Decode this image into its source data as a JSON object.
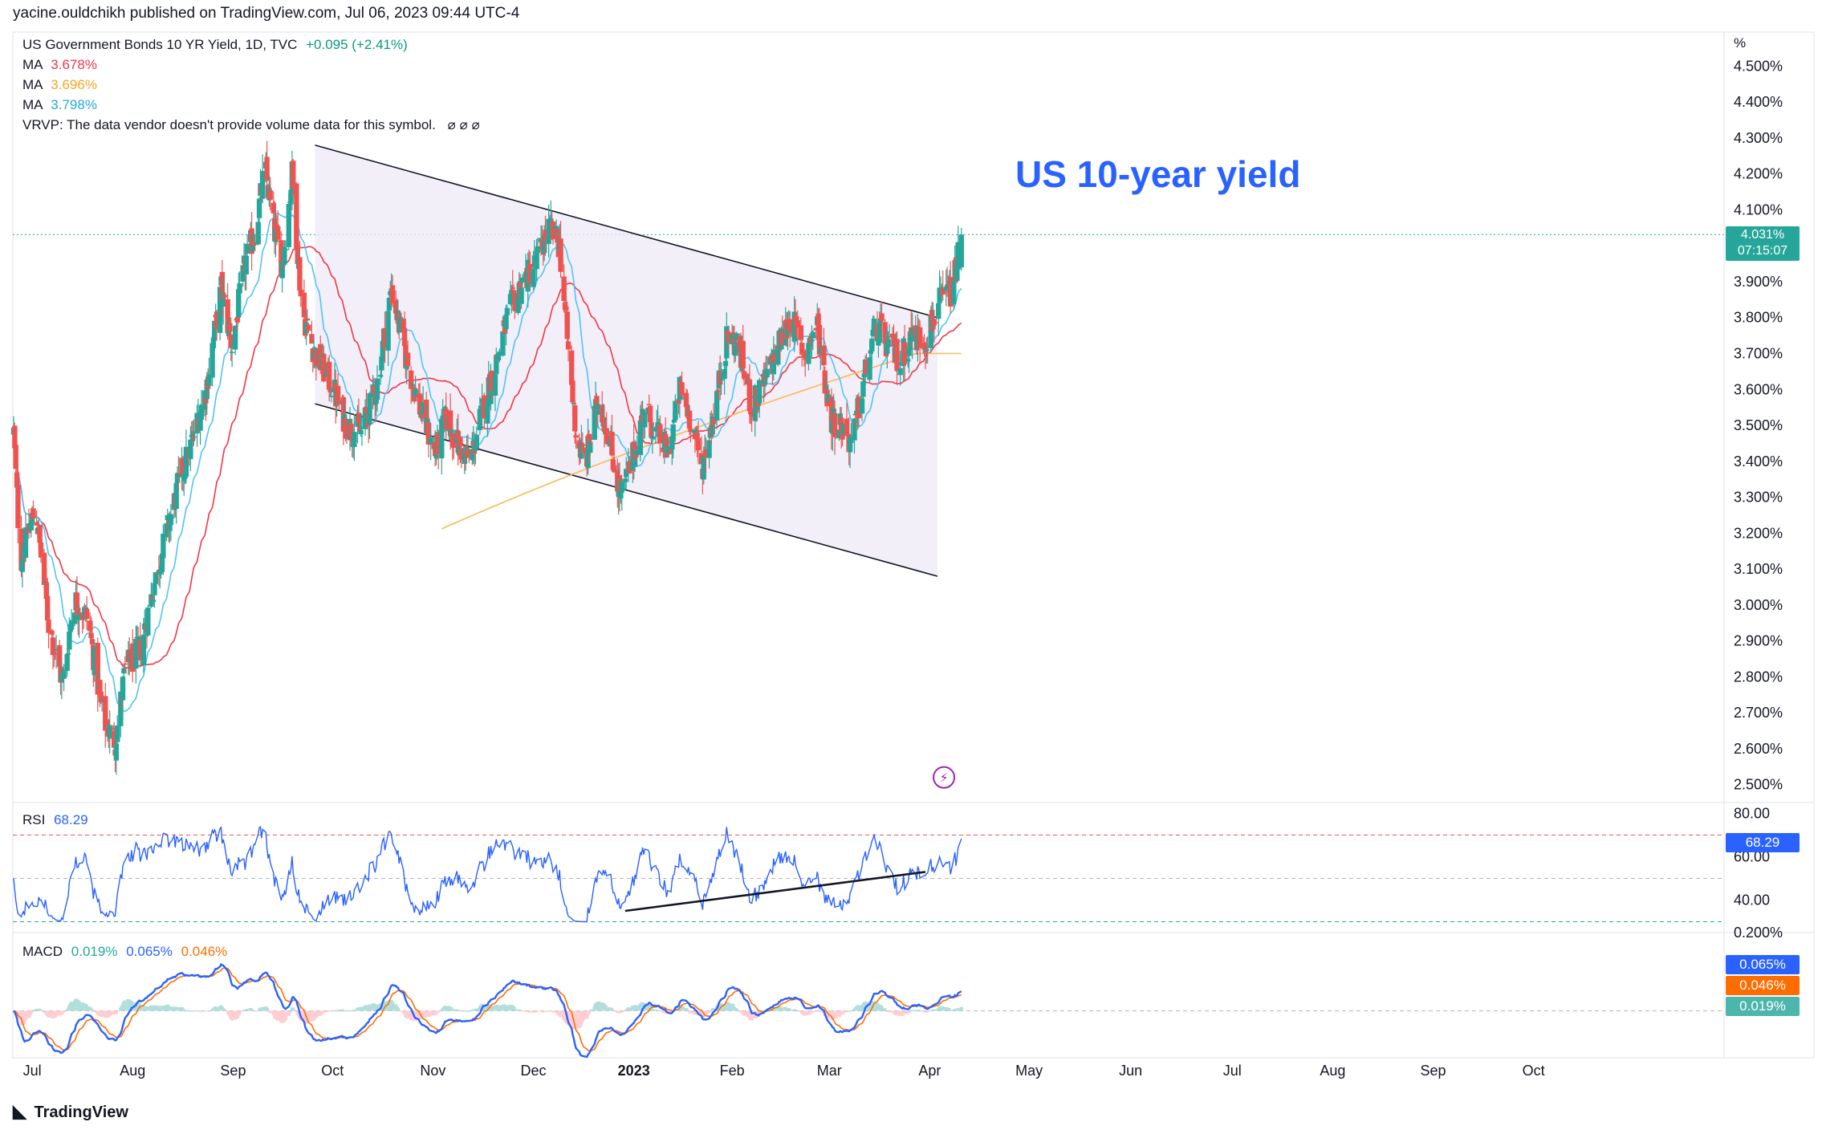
{
  "header": {
    "publisher_line": "yacine.ouldchikh published on TradingView.com, Jul 06, 2023 09:44 UTC-4"
  },
  "legend": {
    "symbol": "US Government Bonds 10 YR Yield, 1D, TVC",
    "change": "+0.095 (+2.41%)",
    "ma1_label": "MA",
    "ma1_value": "3.678%",
    "ma1_color": "#f23645",
    "ma2_label": "MA",
    "ma2_value": "3.696%",
    "ma2_color": "#ffb74d",
    "ma3_label": "MA",
    "ma3_value": "3.798%",
    "ma3_color": "#4fc3f7",
    "vrvp": "VRVP: The data vendor doesn't provide volume data for this symbol.",
    "vrvp_icons": "⌀ ⌀ ⌀"
  },
  "annotation_title": "US 10-year yield",
  "price_axis": {
    "unit_label": "%",
    "current_price": "4.031%",
    "countdown": "07:15:07"
  },
  "rsi": {
    "label": "RSI",
    "value": "68.29",
    "badge": "68.29",
    "color": "#2962ff"
  },
  "macd": {
    "label": "MACD",
    "hist": "0.019%",
    "macd": "0.065%",
    "signal": "0.046%",
    "badge_macd": "0.065%",
    "badge_signal": "0.046%",
    "badge_hist": "0.019%"
  },
  "footer": {
    "brand": "TradingView",
    "brand_icon": "tradingview-logo-icon"
  },
  "colors": {
    "up": "#26a69a",
    "down": "#ef5350",
    "channel_fill": "#ede9f7",
    "macd_line": "#2962ff",
    "signal_line": "#ff6d00"
  },
  "chart_data": [
    {
      "type": "candlestick",
      "title": "US Government Bonds 10 YR Yield, 1D, TVC",
      "ylabel": "%",
      "ylim": [
        2.45,
        4.55
      ],
      "y_ticks": [
        "2.500%",
        "2.600%",
        "2.700%",
        "2.800%",
        "2.900%",
        "3.000%",
        "3.100%",
        "3.200%",
        "3.300%",
        "3.400%",
        "3.500%",
        "3.600%",
        "3.700%",
        "3.800%",
        "3.900%",
        "4.000%",
        "4.100%",
        "4.200%",
        "4.300%",
        "4.400%",
        "4.500%"
      ],
      "x_labels": [
        "Jul",
        "Aug",
        "Sep",
        "Oct",
        "Nov",
        "Dec",
        "2023",
        "Feb",
        "Mar",
        "Apr",
        "May",
        "Jun",
        "Jul",
        "Aug",
        "Sep",
        "Oct"
      ],
      "x_label_days": [
        17,
        109,
        201,
        292,
        384,
        476,
        568,
        658,
        747,
        839,
        930,
        1023,
        1116,
        1208,
        1300,
        1392
      ],
      "close_anchors": [
        {
          "d": 0,
          "v": 3.48
        },
        {
          "d": 6,
          "v": 3.12
        },
        {
          "d": 20,
          "v": 3.27
        },
        {
          "d": 32,
          "v": 2.95
        },
        {
          "d": 45,
          "v": 2.78
        },
        {
          "d": 55,
          "v": 3.02
        },
        {
          "d": 68,
          "v": 2.96
        },
        {
          "d": 82,
          "v": 2.68
        },
        {
          "d": 93,
          "v": 2.62
        },
        {
          "d": 102,
          "v": 2.82
        },
        {
          "d": 116,
          "v": 2.88
        },
        {
          "d": 128,
          "v": 3.05
        },
        {
          "d": 140,
          "v": 3.2
        },
        {
          "d": 152,
          "v": 3.35
        },
        {
          "d": 163,
          "v": 3.45
        },
        {
          "d": 176,
          "v": 3.6
        },
        {
          "d": 190,
          "v": 3.88
        },
        {
          "d": 200,
          "v": 3.72
        },
        {
          "d": 212,
          "v": 3.95
        },
        {
          "d": 222,
          "v": 4.05
        },
        {
          "d": 230,
          "v": 4.22
        },
        {
          "d": 238,
          "v": 4.05
        },
        {
          "d": 246,
          "v": 3.95
        },
        {
          "d": 255,
          "v": 4.2
        },
        {
          "d": 264,
          "v": 3.82
        },
        {
          "d": 276,
          "v": 3.7
        },
        {
          "d": 290,
          "v": 3.62
        },
        {
          "d": 305,
          "v": 3.5
        },
        {
          "d": 318,
          "v": 3.48
        },
        {
          "d": 332,
          "v": 3.6
        },
        {
          "d": 346,
          "v": 3.88
        },
        {
          "d": 360,
          "v": 3.68
        },
        {
          "d": 372,
          "v": 3.55
        },
        {
          "d": 386,
          "v": 3.42
        },
        {
          "d": 396,
          "v": 3.52
        },
        {
          "d": 406,
          "v": 3.45
        },
        {
          "d": 418,
          "v": 3.4
        },
        {
          "d": 430,
          "v": 3.55
        },
        {
          "d": 442,
          "v": 3.68
        },
        {
          "d": 454,
          "v": 3.82
        },
        {
          "d": 466,
          "v": 3.9
        },
        {
          "d": 478,
          "v": 3.95
        },
        {
          "d": 490,
          "v": 4.05
        },
        {
          "d": 500,
          "v": 4.0
        },
        {
          "d": 508,
          "v": 3.7
        },
        {
          "d": 516,
          "v": 3.45
        },
        {
          "d": 524,
          "v": 3.4
        },
        {
          "d": 536,
          "v": 3.58
        },
        {
          "d": 546,
          "v": 3.45
        },
        {
          "d": 556,
          "v": 3.3
        },
        {
          "d": 566,
          "v": 3.4
        },
        {
          "d": 578,
          "v": 3.55
        },
        {
          "d": 588,
          "v": 3.48
        },
        {
          "d": 600,
          "v": 3.42
        },
        {
          "d": 610,
          "v": 3.6
        },
        {
          "d": 620,
          "v": 3.52
        },
        {
          "d": 630,
          "v": 3.38
        },
        {
          "d": 642,
          "v": 3.55
        },
        {
          "d": 654,
          "v": 3.75
        },
        {
          "d": 664,
          "v": 3.72
        },
        {
          "d": 676,
          "v": 3.55
        },
        {
          "d": 688,
          "v": 3.62
        },
        {
          "d": 700,
          "v": 3.72
        },
        {
          "d": 712,
          "v": 3.8
        },
        {
          "d": 724,
          "v": 3.7
        },
        {
          "d": 736,
          "v": 3.78
        },
        {
          "d": 748,
          "v": 3.52
        },
        {
          "d": 758,
          "v": 3.5
        },
        {
          "d": 768,
          "v": 3.45
        },
        {
          "d": 778,
          "v": 3.62
        },
        {
          "d": 790,
          "v": 3.78
        },
        {
          "d": 800,
          "v": 3.72
        },
        {
          "d": 812,
          "v": 3.68
        },
        {
          "d": 822,
          "v": 3.75
        },
        {
          "d": 835,
          "v": 3.74
        },
        {
          "d": 848,
          "v": 3.84
        },
        {
          "d": 860,
          "v": 3.88
        },
        {
          "d": 868,
          "v": 4.03
        }
      ],
      "channel": {
        "upper": {
          "d_start": 276,
          "v_start": 4.28,
          "d_end": 846,
          "v_end": 3.8
        },
        "lower": {
          "d_start": 276,
          "v_start": 3.56,
          "d_end": 846,
          "v_end": 3.08
        }
      },
      "moving_averages": [
        {
          "name": "MA",
          "value": "3.678%",
          "color": "#f23645",
          "period": 50
        },
        {
          "name": "MA",
          "value": "3.696%",
          "color": "#ffb74d",
          "period": 200
        },
        {
          "name": "MA",
          "value": "3.798%",
          "color": "#4fc3f7",
          "period": 20
        }
      ],
      "current_value": 4.031
    },
    {
      "type": "line",
      "title": "RSI",
      "ylim": [
        25,
        85
      ],
      "y_ticks": [
        "40.00",
        "60.00",
        "80.00"
      ],
      "levels": [
        70,
        50,
        30
      ],
      "last": 68.29,
      "trendline": {
        "d_start": 560,
        "v_start": 35,
        "d_end": 835,
        "v_end": 53
      }
    },
    {
      "type": "line",
      "title": "MACD",
      "ylim": [
        -0.12,
        0.2
      ],
      "y_ticks": [
        "0.200%"
      ],
      "series": [
        {
          "name": "MACD",
          "last": 0.065
        },
        {
          "name": "Signal",
          "last": 0.046
        },
        {
          "name": "Histogram",
          "last": 0.019
        }
      ]
    }
  ]
}
